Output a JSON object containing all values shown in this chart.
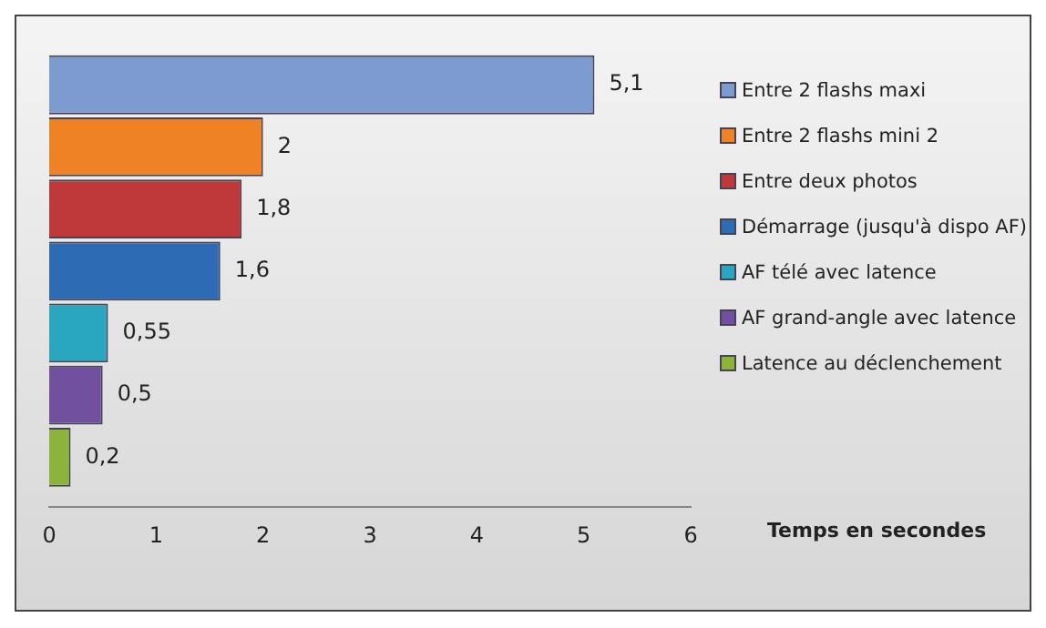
{
  "chart_data": {
    "type": "bar",
    "orientation": "horizontal",
    "xlabel": "Temps en secondes",
    "categories": [
      null
    ],
    "series": [
      {
        "name": "Entre 2 flashs maxi",
        "color": "#7e9bcf",
        "values": [
          5.1
        ],
        "value_labels": [
          "5,1"
        ]
      },
      {
        "name": "Entre 2 flashs mini 2",
        "color": "#ee8224",
        "values": [
          2
        ],
        "value_labels": [
          "2"
        ]
      },
      {
        "name": "Entre deux photos",
        "color": "#c0393a",
        "values": [
          1.8
        ],
        "value_labels": [
          "1,8"
        ]
      },
      {
        "name": "Démarrage (jusqu'à dispo AF)",
        "color": "#2e6bb5",
        "values": [
          1.6
        ],
        "value_labels": [
          "1,6"
        ]
      },
      {
        "name": "AF télé avec latence",
        "color": "#2aa6c0",
        "values": [
          0.55
        ],
        "value_labels": [
          "0,55"
        ]
      },
      {
        "name": "AF grand-angle avec latence",
        "color": "#7150a0",
        "values": [
          0.5
        ],
        "value_labels": [
          "0,5"
        ]
      },
      {
        "name": "Latence au déclenchement",
        "color": "#8cb43c",
        "values": [
          0.2
        ],
        "value_labels": [
          "0,2"
        ]
      }
    ],
    "xlim": [
      0,
      6
    ],
    "xticks": [
      0,
      1,
      2,
      3,
      4,
      5,
      6
    ],
    "grid": false,
    "legend": "right"
  }
}
